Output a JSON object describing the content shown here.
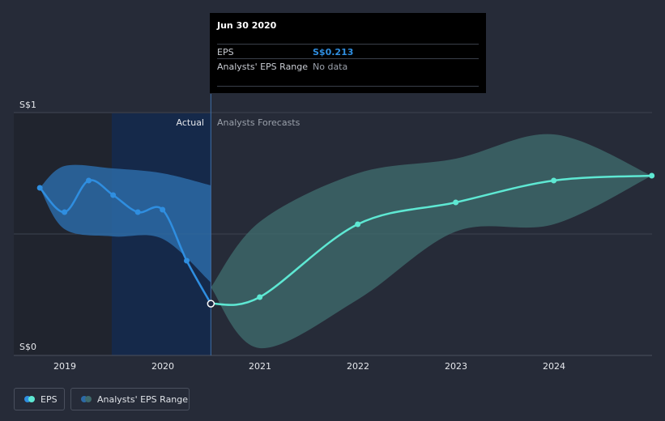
{
  "tooltip": {
    "date": "Jun 30 2020",
    "rows": [
      {
        "label": "EPS",
        "value": "S$0.213"
      },
      {
        "label": "Analysts' EPS Range",
        "value": "No data"
      }
    ]
  },
  "chart_data": {
    "type": "line",
    "y_tick_labels": [
      "S$1",
      "S$0"
    ],
    "x_tick_labels": [
      "2019",
      "2020",
      "2021",
      "2022",
      "2023",
      "2024"
    ],
    "ylim": [
      0,
      1
    ],
    "section_labels": {
      "actual": "Actual",
      "forecast": "Analysts Forecasts"
    },
    "series": [
      {
        "name": "EPS",
        "points": [
          {
            "x": "2018-09-30",
            "y": 0.69
          },
          {
            "x": "2018-12-31",
            "y": 0.59
          },
          {
            "x": "2019-03-31",
            "y": 0.72
          },
          {
            "x": "2019-06-30",
            "y": 0.66
          },
          {
            "x": "2019-09-30",
            "y": 0.59
          },
          {
            "x": "2019-12-31",
            "y": 0.6
          },
          {
            "x": "2020-03-31",
            "y": 0.39
          },
          {
            "x": "2020-06-30",
            "y": 0.213
          }
        ]
      },
      {
        "name": "EPS",
        "points": [
          {
            "x": "2020-06-30",
            "y": 0.213
          },
          {
            "x": "2020-12-31",
            "y": 0.24
          },
          {
            "x": "2021-12-31",
            "y": 0.54
          },
          {
            "x": "2022-12-31",
            "y": 0.63
          },
          {
            "x": "2023-12-31",
            "y": 0.72
          },
          {
            "x": "2024-12-31",
            "y": 0.74
          }
        ]
      }
    ],
    "actual_range_band": {
      "x": [
        "2018-09-30",
        "2018-12-31",
        "2019-06-30",
        "2019-12-31",
        "2020-06-30"
      ],
      "upper": [
        0.69,
        0.78,
        0.77,
        0.75,
        0.7
      ],
      "lower": [
        0.69,
        0.52,
        0.49,
        0.48,
        0.3
      ]
    },
    "forecast_range_band": {
      "name": "Analysts' EPS Range",
      "x": [
        "2020-06-30",
        "2020-12-31",
        "2021-12-31",
        "2022-12-31",
        "2023-12-31",
        "2024-12-31"
      ],
      "upper": [
        0.28,
        0.55,
        0.75,
        0.81,
        0.91,
        0.74
      ],
      "lower": [
        0.28,
        0.03,
        0.23,
        0.51,
        0.54,
        0.74
      ]
    },
    "highlighted_point": {
      "x": "2020-06-30",
      "y": 0.213
    },
    "colors": {
      "background": "#262b38",
      "eps_actual": "#2f8ee0",
      "eps_forecast": "#5ee8d3",
      "actual_band": "#2c6aa6",
      "forecast_band": "#3f6a6c"
    }
  },
  "legend": [
    {
      "label": "EPS",
      "colors": [
        "#2f8ee0",
        "#5ee8d3"
      ]
    },
    {
      "label": "Analysts' EPS Range",
      "colors": [
        "#2c6aa6",
        "#3f6a6c"
      ]
    }
  ]
}
